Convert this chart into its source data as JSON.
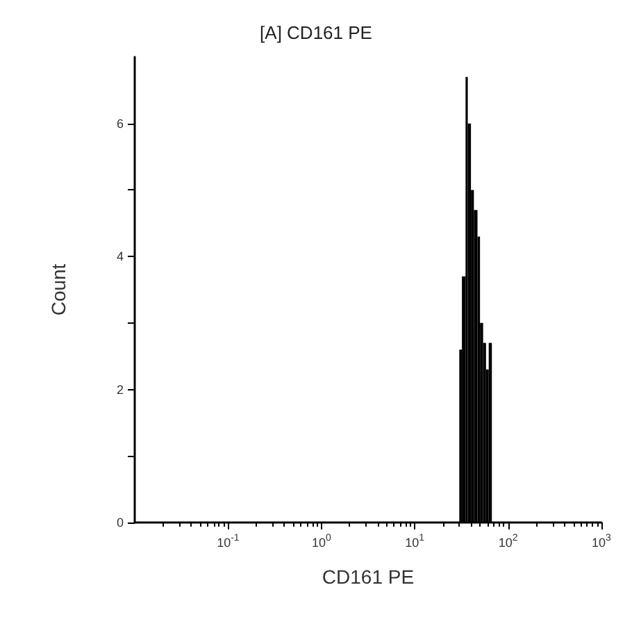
{
  "chart_data": {
    "type": "histogram",
    "title": "[A] CD161 PE",
    "xlabel": "CD161 PE",
    "ylabel": "Count",
    "log": "x",
    "color": "#000000",
    "bins": [
      30,
      32,
      35,
      37,
      40,
      43,
      47,
      50,
      54,
      58,
      62,
      67
    ],
    "values": [
      2.6,
      3.7,
      6.7,
      6.0,
      5.0,
      4.7,
      4.3,
      3.0,
      2.7,
      2.3,
      2.7
    ],
    "xlim": [
      0.01,
      1000
    ],
    "xticks": [
      {
        "value": 0.1,
        "label": "10$^{-1}$"
      },
      {
        "value": 1,
        "label": "10$^{0}$"
      },
      {
        "value": 10,
        "label": "10$^{1}$"
      },
      {
        "value": 100,
        "label": "10$^{2}$"
      },
      {
        "value": 1000,
        "label": "10$^{3}$"
      }
    ],
    "ylim": [
      0,
      7
    ],
    "yticks": [
      0,
      {
        "value": 1,
        "label": null
      },
      2,
      {
        "value": 3,
        "label": null
      },
      4,
      {
        "value": 5,
        "label": null
      },
      6
    ]
  }
}
